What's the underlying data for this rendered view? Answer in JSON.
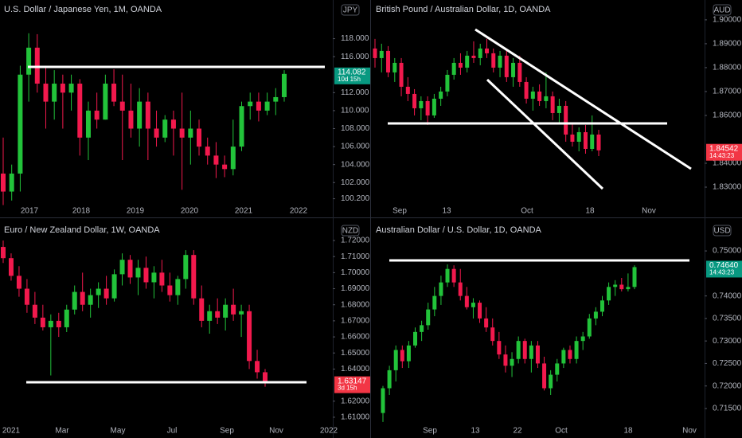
{
  "panels": [
    {
      "title": "U.S. Dollar / Japanese Yen, 1M, OANDA",
      "currency": "JPY",
      "price_axis": {
        "lim": [
          99.1,
          122.3
        ],
        "ticks": [
          {
            "value": 118,
            "label": "118.000"
          },
          {
            "value": 116,
            "label": "116.000"
          },
          {
            "value": 112,
            "label": "112.000"
          },
          {
            "value": 110,
            "label": "110.000"
          },
          {
            "value": 108,
            "label": "108.000"
          },
          {
            "value": 106,
            "label": "106.000"
          },
          {
            "value": 104,
            "label": "104.000"
          },
          {
            "value": 102,
            "label": "102.000"
          },
          {
            "value": 100.2,
            "label": "100.200"
          }
        ]
      },
      "time_axis": [
        "2017",
        "2018",
        "2019",
        "2020",
        "2021",
        "2022"
      ],
      "last_price": {
        "value": 114.082,
        "label": "114.082",
        "countdown": "10d 15h"
      },
      "candles": [
        [
          103,
          107,
          99.5,
          101
        ],
        [
          101,
          104,
          100,
          103
        ],
        [
          103,
          115,
          101,
          114
        ],
        [
          114,
          118.6,
          111,
          117
        ],
        [
          117,
          118.5,
          112,
          113
        ],
        [
          113,
          115,
          108,
          111
        ],
        [
          111,
          114.5,
          109,
          113
        ],
        [
          113,
          114,
          108,
          112
        ],
        [
          112,
          114,
          110,
          113
        ],
        [
          113,
          113.5,
          105,
          107
        ],
        [
          107,
          111,
          104.5,
          110
        ],
        [
          110,
          112,
          108,
          109
        ],
        [
          109,
          114,
          109,
          113
        ],
        [
          113,
          114.6,
          110.5,
          111
        ],
        [
          111,
          114,
          104.5,
          110
        ],
        [
          110,
          113,
          107,
          108
        ],
        [
          108,
          112.5,
          106,
          111
        ],
        [
          111,
          112,
          104.5,
          108
        ],
        [
          108,
          110,
          106,
          107
        ],
        [
          107,
          109.5,
          106.5,
          109
        ],
        [
          109,
          110,
          105,
          108
        ],
        [
          108,
          112,
          101.2,
          107
        ],
        [
          107,
          110,
          104,
          108
        ],
        [
          108,
          109,
          105,
          106
        ],
        [
          106,
          107,
          104,
          105
        ],
        [
          105,
          106.5,
          102.5,
          104
        ],
        [
          104,
          105,
          102.6,
          103.5
        ],
        [
          103.5,
          109,
          102.8,
          106
        ],
        [
          106,
          111,
          105.5,
          110.5
        ],
        [
          110.5,
          112,
          109,
          111
        ],
        [
          111,
          112,
          108.8,
          110
        ],
        [
          110,
          112,
          109.5,
          111
        ],
        [
          111,
          112.5,
          109.5,
          111.5
        ],
        [
          111.5,
          114.5,
          111,
          114.08
        ]
      ]
    },
    {
      "title": "British Pound / Australian Dollar, 1D, OANDA",
      "currency": "AUD",
      "price_axis": {
        "lim": [
          1.821,
          1.9083
        ],
        "ticks": [
          {
            "value": 1.9,
            "label": "1.90000"
          },
          {
            "value": 1.89,
            "label": "1.89000"
          },
          {
            "value": 1.88,
            "label": "1.88000"
          },
          {
            "value": 1.87,
            "label": "1.87000"
          },
          {
            "value": 1.86,
            "label": "1.86000"
          },
          {
            "value": 1.84,
            "label": "1.84000"
          },
          {
            "value": 1.83,
            "label": "1.83000"
          }
        ]
      },
      "time_axis": [
        "Sep",
        "13",
        "Oct",
        "18",
        "Nov"
      ],
      "last_price": {
        "value": 1.84542,
        "label": "1.84542",
        "countdown": "14:43:23"
      },
      "candles": [
        [
          1.888,
          1.892,
          1.88,
          1.884
        ],
        [
          1.884,
          1.89,
          1.878,
          1.887
        ],
        [
          1.887,
          1.889,
          1.876,
          1.878
        ],
        [
          1.878,
          1.884,
          1.874,
          1.882
        ],
        [
          1.882,
          1.884,
          1.868,
          1.872
        ],
        [
          1.872,
          1.876,
          1.866,
          1.869
        ],
        [
          1.869,
          1.871,
          1.86,
          1.863
        ],
        [
          1.863,
          1.868,
          1.858,
          1.866
        ],
        [
          1.866,
          1.868,
          1.856,
          1.86
        ],
        [
          1.86,
          1.869,
          1.859,
          1.867
        ],
        [
          1.867,
          1.872,
          1.864,
          1.87
        ],
        [
          1.87,
          1.879,
          1.868,
          1.877
        ],
        [
          1.877,
          1.884,
          1.875,
          1.882
        ],
        [
          1.882,
          1.886,
          1.877,
          1.88
        ],
        [
          1.88,
          1.887,
          1.878,
          1.885
        ],
        [
          1.885,
          1.891,
          1.882,
          1.884
        ],
        [
          1.884,
          1.89,
          1.881,
          1.888
        ],
        [
          1.888,
          1.892,
          1.884,
          1.886
        ],
        [
          1.886,
          1.888,
          1.878,
          1.88
        ],
        [
          1.88,
          1.887,
          1.876,
          1.885
        ],
        [
          1.885,
          1.887,
          1.874,
          1.876
        ],
        [
          1.876,
          1.884,
          1.872,
          1.882
        ],
        [
          1.882,
          1.885,
          1.872,
          1.874
        ],
        [
          1.874,
          1.876,
          1.865,
          1.867
        ],
        [
          1.867,
          1.872,
          1.862,
          1.87
        ],
        [
          1.87,
          1.873,
          1.864,
          1.866
        ],
        [
          1.866,
          1.878,
          1.863,
          1.868
        ],
        [
          1.868,
          1.87,
          1.858,
          1.861
        ],
        [
          1.861,
          1.867,
          1.857,
          1.864
        ],
        [
          1.864,
          1.866,
          1.849,
          1.852
        ],
        [
          1.852,
          1.857,
          1.847,
          1.849
        ],
        [
          1.849,
          1.855,
          1.845,
          1.853
        ],
        [
          1.853,
          1.856,
          1.844,
          1.846
        ],
        [
          1.846,
          1.86,
          1.845,
          1.852
        ],
        [
          1.852,
          1.854,
          1.843,
          1.8454
        ]
      ]
    },
    {
      "title": "Euro / New Zealand Dollar, 1W, OANDA",
      "currency": "NZD",
      "price_axis": {
        "lim": [
          1.606,
          1.7319
        ],
        "ticks": [
          {
            "value": 1.72,
            "label": "1.72000"
          },
          {
            "value": 1.71,
            "label": "1.71000"
          },
          {
            "value": 1.7,
            "label": "1.70000"
          },
          {
            "value": 1.69,
            "label": "1.69000"
          },
          {
            "value": 1.68,
            "label": "1.68000"
          },
          {
            "value": 1.67,
            "label": "1.67000"
          },
          {
            "value": 1.66,
            "label": "1.66000"
          },
          {
            "value": 1.65,
            "label": "1.65000"
          },
          {
            "value": 1.64,
            "label": "1.64000"
          },
          {
            "value": 1.62,
            "label": "1.62000"
          },
          {
            "value": 1.61,
            "label": "1.61000"
          }
        ]
      },
      "time_axis": [
        "2021",
        "Mar",
        "May",
        "Jul",
        "Sep",
        "Nov",
        "2022"
      ],
      "last_price": {
        "value": 1.63147,
        "label": "1.63147",
        "countdown": "3d 15h"
      },
      "candles": [
        [
          1.716,
          1.72,
          1.706,
          1.709
        ],
        [
          1.709,
          1.712,
          1.695,
          1.698
        ],
        [
          1.698,
          1.704,
          1.685,
          1.69
        ],
        [
          1.69,
          1.696,
          1.675,
          1.68
        ],
        [
          1.68,
          1.688,
          1.668,
          1.672
        ],
        [
          1.672,
          1.68,
          1.664,
          1.666
        ],
        [
          1.666,
          1.674,
          1.636,
          1.67
        ],
        [
          1.67,
          1.675,
          1.66,
          1.666
        ],
        [
          1.666,
          1.68,
          1.663,
          1.677
        ],
        [
          1.677,
          1.692,
          1.674,
          1.688
        ],
        [
          1.688,
          1.7,
          1.676,
          1.68
        ],
        [
          1.68,
          1.69,
          1.672,
          1.686
        ],
        [
          1.686,
          1.694,
          1.678,
          1.69
        ],
        [
          1.69,
          1.698,
          1.68,
          1.684
        ],
        [
          1.684,
          1.702,
          1.682,
          1.699
        ],
        [
          1.699,
          1.712,
          1.692,
          1.708
        ],
        [
          1.708,
          1.711,
          1.693,
          1.697
        ],
        [
          1.697,
          1.708,
          1.686,
          1.703
        ],
        [
          1.703,
          1.71,
          1.69,
          1.694
        ],
        [
          1.694,
          1.704,
          1.684,
          1.7
        ],
        [
          1.7,
          1.708,
          1.688,
          1.692
        ],
        [
          1.692,
          1.7,
          1.682,
          1.686
        ],
        [
          1.686,
          1.698,
          1.68,
          1.696
        ],
        [
          1.696,
          1.714,
          1.69,
          1.711
        ],
        [
          1.711,
          1.714,
          1.68,
          1.684
        ],
        [
          1.684,
          1.692,
          1.666,
          1.67
        ],
        [
          1.67,
          1.68,
          1.662,
          1.676
        ],
        [
          1.676,
          1.684,
          1.668,
          1.672
        ],
        [
          1.672,
          1.684,
          1.664,
          1.68
        ],
        [
          1.68,
          1.69,
          1.67,
          1.674
        ],
        [
          1.674,
          1.68,
          1.66,
          1.676
        ],
        [
          1.676,
          1.68,
          1.64,
          1.645
        ],
        [
          1.645,
          1.652,
          1.634,
          1.638
        ],
        [
          1.638,
          1.64,
          1.629,
          1.6315
        ]
      ]
    },
    {
      "title": "Australian Dollar / U.S. Dollar, 1D, OANDA",
      "currency": "USD",
      "price_axis": {
        "lim": [
          0.71163,
          0.75656
        ],
        "ticks": [
          {
            "value": 0.75,
            "label": "0.75000"
          },
          {
            "value": 0.74,
            "label": "0.74000"
          },
          {
            "value": 0.735,
            "label": "0.73500"
          },
          {
            "value": 0.73,
            "label": "0.73000"
          },
          {
            "value": 0.725,
            "label": "0.72500"
          },
          {
            "value": 0.72,
            "label": "0.72000"
          },
          {
            "value": 0.715,
            "label": "0.71500"
          }
        ]
      },
      "time_axis": [
        "Sep",
        "13",
        "22",
        "Oct",
        "18",
        "Nov"
      ],
      "last_price": {
        "value": 0.7464,
        "label": "0.74640",
        "countdown": "14:43:23"
      },
      "candles": [
        [
          0.714,
          0.72,
          0.712,
          0.7195
        ],
        [
          0.7195,
          0.7245,
          0.718,
          0.7235
        ],
        [
          0.7235,
          0.729,
          0.721,
          0.728
        ],
        [
          0.728,
          0.729,
          0.724,
          0.7255
        ],
        [
          0.7255,
          0.73,
          0.724,
          0.729
        ],
        [
          0.729,
          0.733,
          0.7285,
          0.732
        ],
        [
          0.732,
          0.7345,
          0.73,
          0.7335
        ],
        [
          0.7335,
          0.7385,
          0.7325,
          0.737
        ],
        [
          0.737,
          0.742,
          0.7355,
          0.74
        ],
        [
          0.74,
          0.7445,
          0.738,
          0.743
        ],
        [
          0.743,
          0.747,
          0.742,
          0.746
        ],
        [
          0.746,
          0.7468,
          0.742,
          0.743
        ],
        [
          0.743,
          0.746,
          0.739,
          0.74
        ],
        [
          0.74,
          0.742,
          0.737,
          0.7375
        ],
        [
          0.7375,
          0.7395,
          0.735,
          0.7385
        ],
        [
          0.7385,
          0.739,
          0.734,
          0.735
        ],
        [
          0.735,
          0.7375,
          0.732,
          0.733
        ],
        [
          0.733,
          0.735,
          0.729,
          0.73
        ],
        [
          0.73,
          0.732,
          0.726,
          0.727
        ],
        [
          0.727,
          0.729,
          0.723,
          0.7245
        ],
        [
          0.7245,
          0.7275,
          0.722,
          0.726
        ],
        [
          0.726,
          0.731,
          0.725,
          0.73
        ],
        [
          0.73,
          0.7305,
          0.725,
          0.726
        ],
        [
          0.726,
          0.73,
          0.723,
          0.729
        ],
        [
          0.729,
          0.73,
          0.724,
          0.725
        ],
        [
          0.725,
          0.7265,
          0.719,
          0.7195
        ],
        [
          0.7195,
          0.7235,
          0.718,
          0.7225
        ],
        [
          0.7225,
          0.726,
          0.721,
          0.725
        ],
        [
          0.725,
          0.7285,
          0.724,
          0.728
        ],
        [
          0.728,
          0.729,
          0.725,
          0.726
        ],
        [
          0.726,
          0.731,
          0.725,
          0.73
        ],
        [
          0.73,
          0.732,
          0.728,
          0.731
        ],
        [
          0.731,
          0.736,
          0.7305,
          0.735
        ],
        [
          0.735,
          0.7375,
          0.7335,
          0.7365
        ],
        [
          0.7365,
          0.74,
          0.7355,
          0.739
        ],
        [
          0.739,
          0.743,
          0.738,
          0.742
        ],
        [
          0.742,
          0.7435,
          0.74,
          0.7425
        ],
        [
          0.7425,
          0.744,
          0.741,
          0.7415
        ],
        [
          0.7415,
          0.745,
          0.741,
          0.742
        ],
        [
          0.742,
          0.7468,
          0.7415,
          0.7464
        ]
      ]
    }
  ]
}
